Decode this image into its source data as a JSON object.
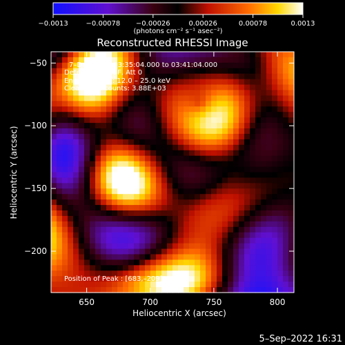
{
  "chart_data": {
    "type": "heatmap",
    "title": "Reconstructed RHESSI Image",
    "xlabel": "Heliocentric X (arcsec)",
    "ylabel": "Heliocentric Y (arcsec)",
    "xlim": [
      622,
      813
    ],
    "ylim": [
      -233,
      -41
    ],
    "x_ticks": [
      650,
      700,
      750,
      800
    ],
    "x_tick_labels": [
      "650",
      "700",
      "750",
      "800"
    ],
    "y_ticks": [
      -50,
      -100,
      -150,
      -200
    ],
    "y_tick_labels": [
      "−50",
      "−100",
      "−150",
      "−200"
    ],
    "colorbar": {
      "range": [
        -0.0013,
        0.0013
      ],
      "tick_values": [
        -0.0013,
        -0.00078,
        -0.00026,
        0.00026,
        0.00078,
        0.0013
      ],
      "tick_labels": [
        "−0.0013",
        "−0.00078",
        "−0.00026",
        "0.00026",
        "0.00078",
        "0.0013"
      ],
      "label": "(photons cm⁻² s⁻¹ asec⁻²)"
    },
    "annotations": [
      "7–Dec–2016 03:35:04.000 to 03:41:04.000",
      "Detectors: 3F 9F, Att 0",
      "Energy Range: 12.0 – 25.0 keV",
      "Clean     Total counts: 3.88E+03"
    ],
    "peak_label": "Position of Peak : [683,–209]",
    "peak": [
      683,
      -209
    ],
    "footer_date": "5–Sep–2022 16:31"
  }
}
